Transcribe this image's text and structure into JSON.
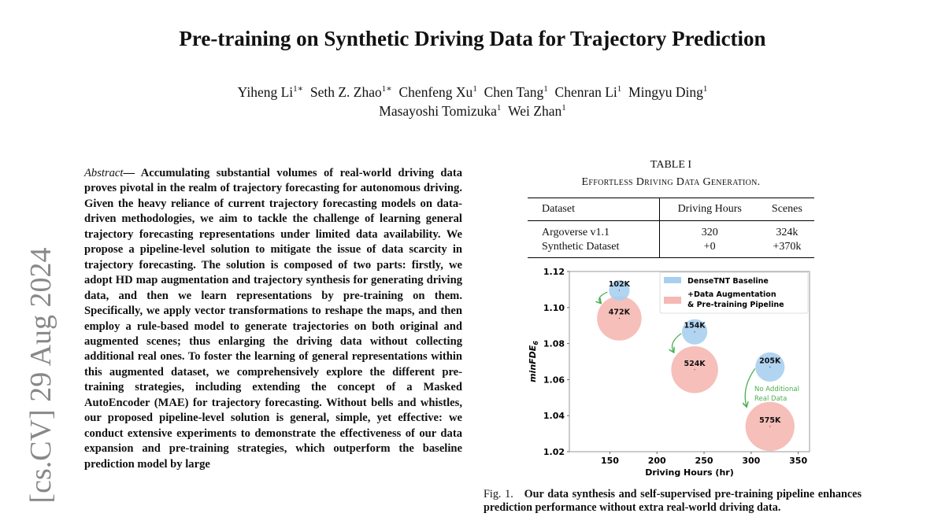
{
  "title": "Pre-training on Synthetic Driving Data for Trajectory Prediction",
  "authors_line1": [
    {
      "name": "Yiheng Li",
      "sup": "1∗"
    },
    {
      "name": "Seth Z. Zhao",
      "sup": "1∗"
    },
    {
      "name": "Chenfeng Xu",
      "sup": "1"
    },
    {
      "name": "Chen Tang",
      "sup": "1"
    },
    {
      "name": "Chenran Li",
      "sup": "1"
    },
    {
      "name": "Mingyu Ding",
      "sup": "1"
    }
  ],
  "authors_line2": [
    {
      "name": "Masayoshi Tomizuka",
      "sup": "1"
    },
    {
      "name": "Wei Zhan",
      "sup": "1"
    }
  ],
  "arxiv_stamp": "[cs.CV]  29 Aug 2024",
  "abstract": {
    "label": "Abstract",
    "text": "— Accumulating substantial volumes of real-world driving data proves pivotal in the realm of trajectory forecasting for autonomous driving. Given the heavy reliance of current trajectory forecasting models on data-driven methodologies, we aim to tackle the challenge of learning general trajectory forecasting representations under limited data availability. We propose a pipeline-level solution to mitigate the issue of data scarcity in trajectory forecasting. The solution is composed of two parts: firstly, we adopt HD map augmentation and trajectory synthesis for generating driving data, and then we learn representations by pre-training on them. Specifically, we apply vector transformations to reshape the maps, and then employ a rule-based model to generate trajectories on both original and augmented scenes; thus enlarging the driving data without collecting additional real ones. To foster the learning of general representations within this augmented dataset, we comprehensively explore the different pre-training strategies, including extending the concept of a Masked AutoEncoder (MAE) for trajectory forecasting. Without bells and whistles, our proposed pipeline-level solution is general, simple, yet effective: we conduct extensive experiments to demonstrate the effectiveness of our data expansion and pre-training strategies, which outperform the baseline prediction model by large"
  },
  "table": {
    "label": "TABLE I",
    "caption": "Effortless Driving Data Generation.",
    "headers": [
      "Dataset",
      "Driving Hours",
      "Scenes"
    ],
    "rows": [
      [
        "Argoverse v1.1",
        "320",
        "324k"
      ],
      [
        "Synthetic Dataset",
        "+0",
        "+370k"
      ]
    ]
  },
  "chart_data": {
    "type": "scatter",
    "xlabel": "Driving Hours (hr)",
    "ylabel": "minFDE",
    "ylabel_sub": "6",
    "xlim": [
      107,
      362
    ],
    "ylim": [
      1.02,
      1.12
    ],
    "xticks": [
      150,
      200,
      250,
      300,
      350
    ],
    "yticks": [
      "1.02",
      "1.04",
      "1.06",
      "1.08",
      "1.10",
      "1.12"
    ],
    "legend_position": "top-right",
    "annotation": [
      "No Additional",
      "Real Data"
    ],
    "series": [
      {
        "name": "DenseTNT Baseline",
        "color": "#a9cff0",
        "points": [
          {
            "x": 160,
            "y": 1.1095,
            "size": 102,
            "label": "102K"
          },
          {
            "x": 240,
            "y": 1.0865,
            "size": 154,
            "label": "154K"
          },
          {
            "x": 320,
            "y": 1.067,
            "size": 205,
            "label": "205K"
          }
        ]
      },
      {
        "name": "+Data Augmentation & Pre-training Pipeline",
        "legend_lines": [
          "+Data Augmentation",
          " & Pre-training Pipeline"
        ],
        "color": "#f5b8b3",
        "points": [
          {
            "x": 160,
            "y": 1.094,
            "size": 472,
            "label": "472K"
          },
          {
            "x": 240,
            "y": 1.0655,
            "size": 524,
            "label": "524K"
          },
          {
            "x": 320,
            "y": 1.034,
            "size": 575,
            "label": "575K"
          }
        ]
      }
    ],
    "arrow_color": "#4caf50"
  },
  "figure_caption": {
    "label": "Fig. 1.",
    "text": "Our data synthesis and self-supervised pre-training pipeline enhances prediction performance without extra real-world driving data."
  }
}
